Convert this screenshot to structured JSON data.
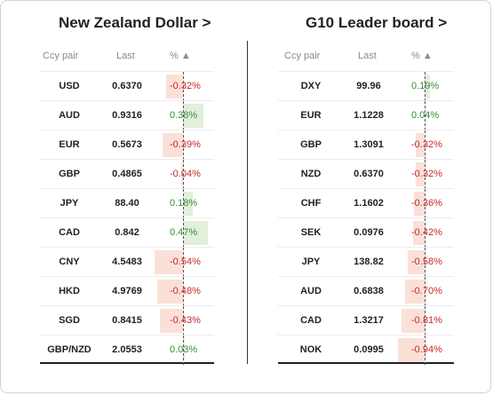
{
  "left": {
    "title": "New Zealand Dollar >",
    "headers": {
      "pair": "Ccy pair",
      "last": "Last",
      "pct": "% ▲"
    },
    "rows": [
      {
        "pair": "USD",
        "last": "0.6370",
        "pct": "-0.32%",
        "value": -0.32
      },
      {
        "pair": "AUD",
        "last": "0.9316",
        "pct": "0.38%",
        "value": 0.38
      },
      {
        "pair": "EUR",
        "last": "0.5673",
        "pct": "-0.39%",
        "value": -0.39
      },
      {
        "pair": "GBP",
        "last": "0.4865",
        "pct": "-0.04%",
        "value": -0.04
      },
      {
        "pair": "JPY",
        "last": "88.40",
        "pct": "0.18%",
        "value": 0.18
      },
      {
        "pair": "CAD",
        "last": "0.842",
        "pct": "0.47%",
        "value": 0.47
      },
      {
        "pair": "CNY",
        "last": "4.5483",
        "pct": "-0.54%",
        "value": -0.54
      },
      {
        "pair": "HKD",
        "last": "4.9769",
        "pct": "-0.48%",
        "value": -0.48
      },
      {
        "pair": "SGD",
        "last": "0.8415",
        "pct": "-0.43%",
        "value": -0.43
      },
      {
        "pair": "GBP/NZD",
        "last": "2.0553",
        "pct": "0.03%",
        "value": 0.03
      }
    ]
  },
  "right": {
    "title": "G10 Leader board >",
    "headers": {
      "pair": "Ccy pair",
      "last": "Last",
      "pct": "% ▲"
    },
    "rows": [
      {
        "pair": "DXY",
        "last": "99.96",
        "pct": "0.19%",
        "value": 0.19
      },
      {
        "pair": "EUR",
        "last": "1.1228",
        "pct": "0.04%",
        "value": 0.04
      },
      {
        "pair": "GBP",
        "last": "1.3091",
        "pct": "-0.32%",
        "value": -0.32
      },
      {
        "pair": "NZD",
        "last": "0.6370",
        "pct": "-0.32%",
        "value": -0.32
      },
      {
        "pair": "CHF",
        "last": "1.1602",
        "pct": "-0.36%",
        "value": -0.36
      },
      {
        "pair": "SEK",
        "last": "0.0976",
        "pct": "-0.42%",
        "value": -0.42
      },
      {
        "pair": "JPY",
        "last": "138.82",
        "pct": "-0.58%",
        "value": -0.58
      },
      {
        "pair": "AUD",
        "last": "0.6838",
        "pct": "-0.70%",
        "value": -0.7
      },
      {
        "pair": "CAD",
        "last": "1.3217",
        "pct": "-0.81%",
        "value": -0.81
      },
      {
        "pair": "NOK",
        "last": "0.0995",
        "pct": "-0.94%",
        "value": -0.94
      }
    ]
  },
  "colors": {
    "negative_text": "#c62828",
    "positive_text": "#3b8a3b",
    "negative_bar": "#fbe0d8",
    "positive_bar": "#e2efdb"
  }
}
